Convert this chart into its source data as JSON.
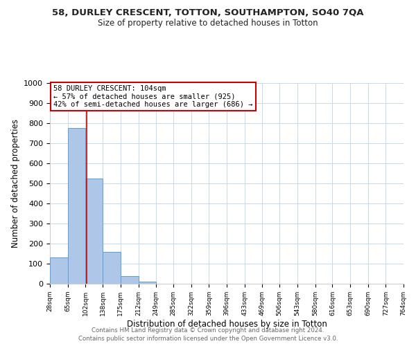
{
  "title": "58, DURLEY CRESCENT, TOTTON, SOUTHAMPTON, SO40 7QA",
  "subtitle": "Size of property relative to detached houses in Totton",
  "xlabel": "Distribution of detached houses by size in Totton",
  "ylabel": "Number of detached properties",
  "bar_edges": [
    28,
    65,
    102,
    138,
    175,
    212,
    249,
    285,
    322,
    359,
    396,
    433,
    469,
    506,
    543,
    580,
    616,
    653,
    690,
    727,
    764
  ],
  "bar_heights": [
    130,
    775,
    525,
    157,
    38,
    10,
    0,
    0,
    0,
    0,
    0,
    0,
    0,
    0,
    0,
    0,
    0,
    0,
    0,
    0
  ],
  "bar_color": "#aec6e8",
  "bar_edge_color": "#5a9fd4",
  "vline_x": 104,
  "vline_color": "#cc0000",
  "ylim": [
    0,
    1000
  ],
  "yticks": [
    0,
    100,
    200,
    300,
    400,
    500,
    600,
    700,
    800,
    900,
    1000
  ],
  "annotation_line1": "58 DURLEY CRESCENT: 104sqm",
  "annotation_line2": "← 57% of detached houses are smaller (925)",
  "annotation_line3": "42% of semi-detached houses are larger (686) →",
  "annotation_box_color": "#cc0000",
  "footer_line1": "Contains HM Land Registry data © Crown copyright and database right 2024.",
  "footer_line2": "Contains public sector information licensed under the Open Government Licence v3.0.",
  "background_color": "#ffffff",
  "grid_color": "#c8d8e8",
  "tick_labels": [
    "28sqm",
    "65sqm",
    "102sqm",
    "138sqm",
    "175sqm",
    "212sqm",
    "249sqm",
    "285sqm",
    "322sqm",
    "359sqm",
    "396sqm",
    "433sqm",
    "469sqm",
    "506sqm",
    "543sqm",
    "580sqm",
    "616sqm",
    "653sqm",
    "690sqm",
    "727sqm",
    "764sqm"
  ]
}
